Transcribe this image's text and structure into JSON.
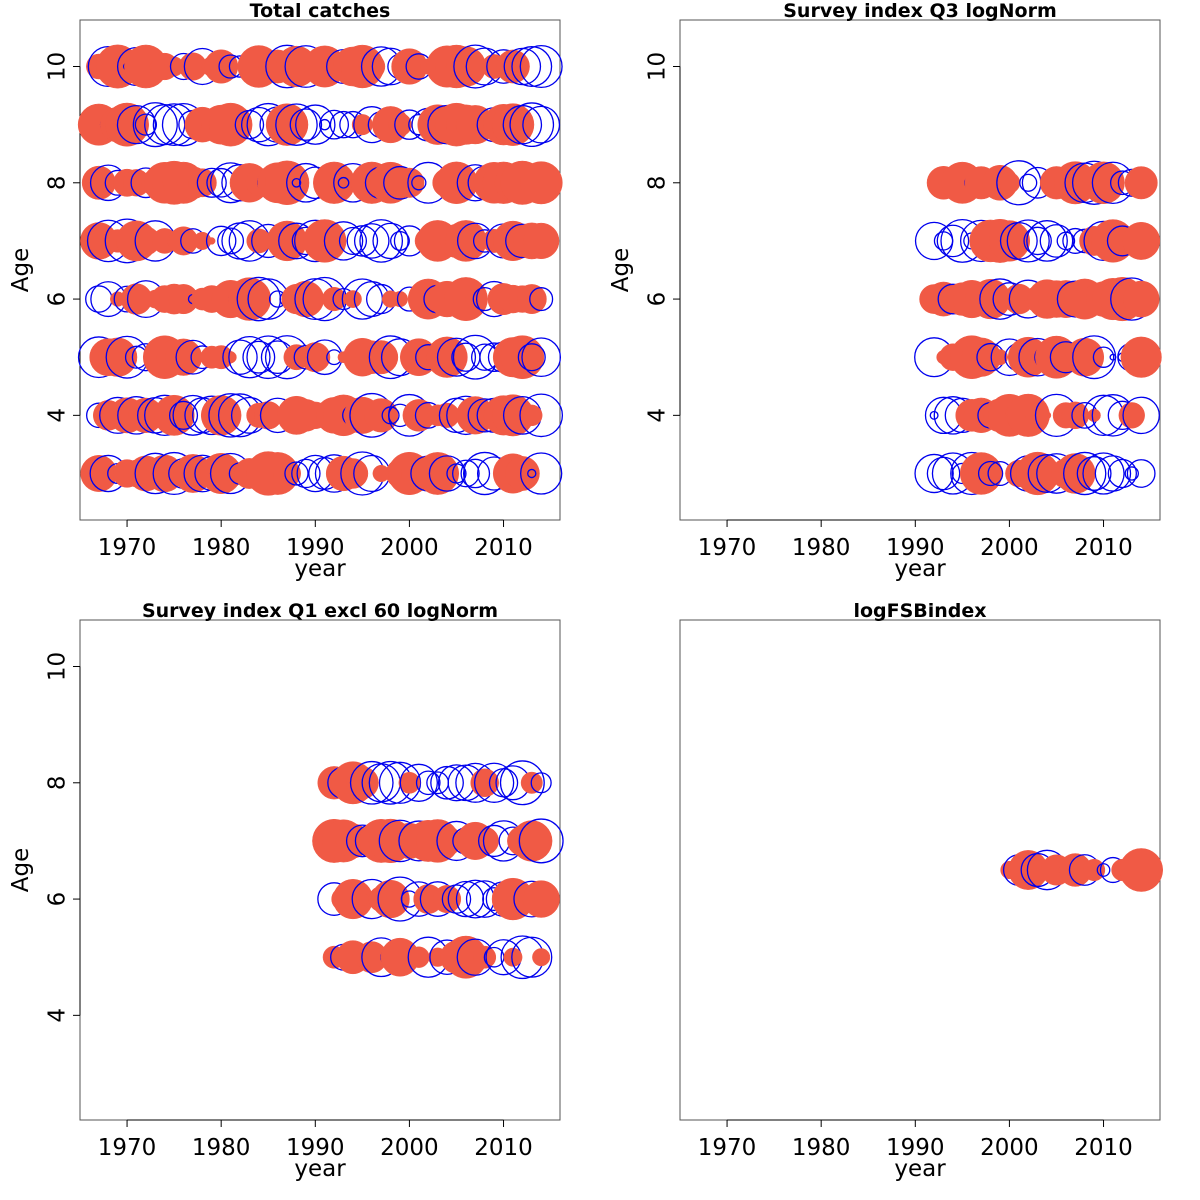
{
  "chart_data": [
    {
      "type": "scatter",
      "title": "Total catches",
      "xlabel": "year",
      "ylabel": "Age",
      "xlim": [
        1965,
        2016
      ],
      "ylim": [
        2.2,
        10.8
      ],
      "xticks": [
        1970,
        1980,
        1990,
        2000,
        2010
      ],
      "yticks": [
        4,
        6,
        8,
        10
      ],
      "years": [
        1967,
        2014
      ],
      "ages": [
        3,
        4,
        5,
        6,
        7,
        8,
        9,
        10
      ],
      "point_meaning": "standardized residual: filled red = positive, open blue = negative; area proportional to |residual|",
      "colors": {
        "positive": "#f05a45",
        "negative": "#0000ee"
      }
    },
    {
      "type": "scatter",
      "title": "Survey index Q3 logNorm",
      "xlabel": "year",
      "ylabel": "Age",
      "xlim": [
        1965,
        2016
      ],
      "ylim": [
        2.2,
        10.8
      ],
      "xticks": [
        1970,
        1980,
        1990,
        2000,
        2010
      ],
      "yticks": [
        4,
        6,
        8,
        10
      ],
      "years": [
        1992,
        2014
      ],
      "ages": [
        3,
        4,
        5,
        6,
        7,
        8
      ],
      "colors": {
        "positive": "#f05a45",
        "negative": "#0000ee"
      }
    },
    {
      "type": "scatter",
      "title": "Survey index Q1 excl 60 logNorm",
      "xlabel": "year",
      "ylabel": "Age",
      "xlim": [
        1965,
        2016
      ],
      "ylim": [
        2.2,
        10.8
      ],
      "xticks": [
        1970,
        1980,
        1990,
        2000,
        2010
      ],
      "yticks": [
        4,
        6,
        8,
        10
      ],
      "years": [
        1992,
        2014
      ],
      "ages": [
        5,
        6,
        7,
        8
      ],
      "colors": {
        "positive": "#f05a45",
        "negative": "#0000ee"
      }
    },
    {
      "type": "scatter",
      "title": "logFSBindex",
      "xlabel": "year",
      "ylabel": "",
      "xlim": [
        1965,
        2016
      ],
      "ylim": [
        2.2,
        10.8
      ],
      "xticks": [
        1970,
        1980,
        1990,
        2000,
        2010
      ],
      "yticks": [],
      "years": [
        2000,
        2014
      ],
      "ages": [
        6.5
      ],
      "points": [
        {
          "x": 2000,
          "r": 0.2
        },
        {
          "x": 2001,
          "r": -0.6
        },
        {
          "x": 2002,
          "r": 1.0
        },
        {
          "x": 2003,
          "r": -0.7
        },
        {
          "x": 2004,
          "r": -1.0
        },
        {
          "x": 2005,
          "r": 0.6
        },
        {
          "x": 2006,
          "r": -0.1
        },
        {
          "x": 2007,
          "r": 0.7
        },
        {
          "x": 2008,
          "r": -0.6
        },
        {
          "x": 2009,
          "r": 0.3
        },
        {
          "x": 2010,
          "r": -0.1
        },
        {
          "x": 2011,
          "r": -0.4
        },
        {
          "x": 2012,
          "r": 0.3
        },
        {
          "x": 2014,
          "r": 1.2
        }
      ],
      "colors": {
        "positive": "#f05a45",
        "negative": "#0000ee"
      }
    }
  ]
}
